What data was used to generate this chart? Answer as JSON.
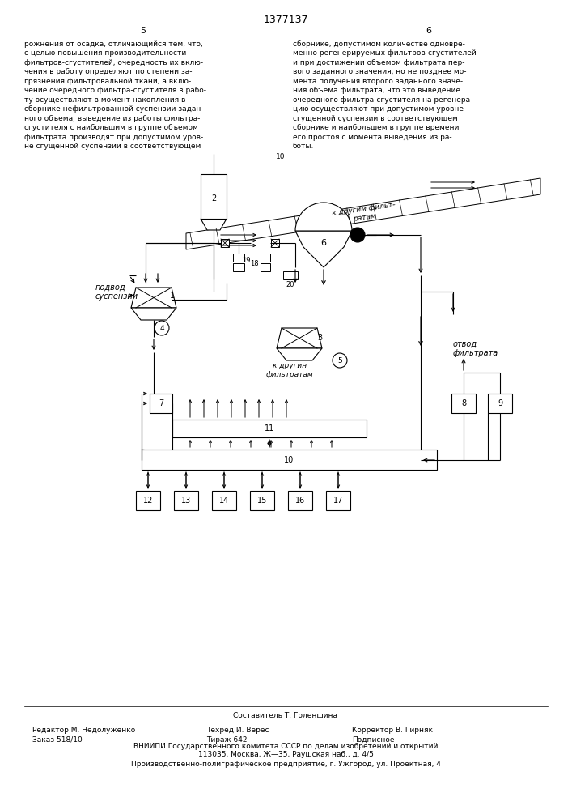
{
  "page_title": "1377137",
  "text_left": "рожнения от осадка, отличающийся тем, что,\nс целью повышения производительности\nфильтров-сгустителей, очередность их вклю-\nчения в работу определяют по степени за-\nгрязнения фильтровальной ткани, а вклю-\nчение очередного фильтра-сгустителя в рабо-\nту осуществляют в момент накопления в\nсборнике нефильтрованной суспензии задан-\nного объема, выведение из работы фильтра-\nсгустителя с наибольшим в группе объемом\nфильтрата производят при допустимом уров-\nне сгущенной суспензии в соответствующем",
  "text_right": "сборнике, допустимом количестве одновре-\nменно регенерируемых фильтров-сгустителей\nи при достижении объемом фильтрата пер-\nвого заданного значения, но не позднее мо-\nмента получения второго заданного значе-\nния объема фильтрата, что это выведение\nочередного фильтра-сгустителя на регенера-\nцию осуществляют при допустимом уровне\nсгущенной суспензии в соответствующем\nсборнике и наибольшем в группе времени\nего простоя с момента выведения из ра-\nботы.",
  "footer_line1": "Составитель Т. Голеншина",
  "footer_editor": "Редактор М. Недолуженко",
  "footer_tech": "Техред И. Верес",
  "footer_corrector": "Корректор В. Гирняк",
  "footer_order": "Заказ 518/10",
  "footer_tirazh": "Тираж 642",
  "footer_podpisnoe": "Подписное",
  "footer_vniip": "ВНИИПИ Государственного комитета СССР по делам изобретений и открытий",
  "footer_addr": "113035, Москва, Ж—35, Раушская наб., д. 4/5",
  "footer_predpr": "Производственно-полиграфическое предприятие, г. Ужгород, ул. Проектная, 4"
}
